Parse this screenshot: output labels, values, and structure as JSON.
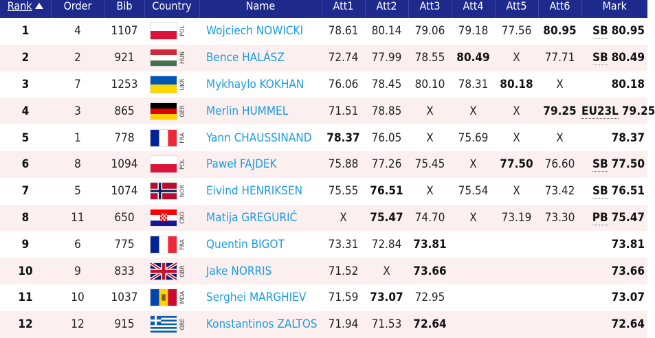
{
  "headers": [
    "Rank",
    "Order",
    "Bib",
    "Country",
    "Name",
    "Att1",
    "Att2",
    "Att3",
    "Att4",
    "Att5",
    "Att6",
    "Mark"
  ],
  "rows": [
    {
      "rank": "1",
      "order": "4",
      "bib": "1107",
      "country": "POL",
      "name": "Wojciech NOWICKI",
      "att": [
        "78.61",
        "80.14",
        "79.06",
        "79.18",
        "77.56",
        "80.95"
      ],
      "best": 5,
      "note": "SB",
      "mark": "80.95"
    },
    {
      "rank": "2",
      "order": "2",
      "bib": "921",
      "country": "HUN",
      "name": "Bence HALÁSZ",
      "att": [
        "72.74",
        "77.99",
        "78.55",
        "80.49",
        "X",
        "77.71"
      ],
      "best": 3,
      "note": "SB",
      "mark": "80.49"
    },
    {
      "rank": "3",
      "order": "7",
      "bib": "1253",
      "country": "UKR",
      "name": "Mykhaylo KOKHAN",
      "att": [
        "76.06",
        "78.45",
        "80.10",
        "78.31",
        "80.18",
        "X"
      ],
      "best": 4,
      "note": "",
      "mark": "80.18"
    },
    {
      "rank": "4",
      "order": "3",
      "bib": "865",
      "country": "GER",
      "name": "Merlin HUMMEL",
      "att": [
        "71.51",
        "78.85",
        "X",
        "X",
        "X",
        "79.25"
      ],
      "best": 5,
      "note": "EU23L",
      "mark": "79.25"
    },
    {
      "rank": "5",
      "order": "1",
      "bib": "778",
      "country": "FRA",
      "name": "Yann CHAUSSINAND",
      "att": [
        "78.37",
        "76.05",
        "X",
        "75.69",
        "X",
        "X"
      ],
      "best": 0,
      "note": "",
      "mark": "78.37"
    },
    {
      "rank": "6",
      "order": "8",
      "bib": "1094",
      "country": "POL",
      "name": "Paweł FAJDEK",
      "att": [
        "75.88",
        "77.26",
        "75.45",
        "X",
        "77.50",
        "76.60"
      ],
      "best": 4,
      "note": "SB",
      "mark": "77.50"
    },
    {
      "rank": "7",
      "order": "5",
      "bib": "1074",
      "country": "NOR",
      "name": "Eivind HENRIKSEN",
      "att": [
        "75.55",
        "76.51",
        "X",
        "75.54",
        "X",
        "73.42"
      ],
      "best": 1,
      "note": "SB",
      "mark": "76.51"
    },
    {
      "rank": "8",
      "order": "11",
      "bib": "650",
      "country": "CRO",
      "name": "Matija GREGURIĆ",
      "att": [
        "X",
        "75.47",
        "74.70",
        "X",
        "73.19",
        "73.30"
      ],
      "best": 1,
      "note": "PB",
      "mark": "75.47"
    },
    {
      "rank": "9",
      "order": "6",
      "bib": "775",
      "country": "FRA",
      "name": "Quentin BIGOT",
      "att": [
        "73.31",
        "72.84",
        "73.81",
        "",
        "",
        ""
      ],
      "best": 2,
      "note": "",
      "mark": "73.81"
    },
    {
      "rank": "10",
      "order": "9",
      "bib": "833",
      "country": "GBR",
      "name": "Jake NORRIS",
      "att": [
        "71.52",
        "X",
        "73.66",
        "",
        "",
        ""
      ],
      "best": 2,
      "note": "",
      "mark": "73.66"
    },
    {
      "rank": "11",
      "order": "10",
      "bib": "1037",
      "country": "MDA",
      "name": "Serghei MARGHIEV",
      "att": [
        "71.59",
        "73.07",
        "72.95",
        "",
        "",
        ""
      ],
      "best": 1,
      "note": "",
      "mark": "73.07"
    },
    {
      "rank": "12",
      "order": "12",
      "bib": "915",
      "country": "GRE",
      "name": "Konstantinos ZALTOS",
      "att": [
        "71.94",
        "71.53",
        "72.64",
        "",
        "",
        ""
      ],
      "best": 2,
      "note": "",
      "mark": "72.64"
    }
  ]
}
